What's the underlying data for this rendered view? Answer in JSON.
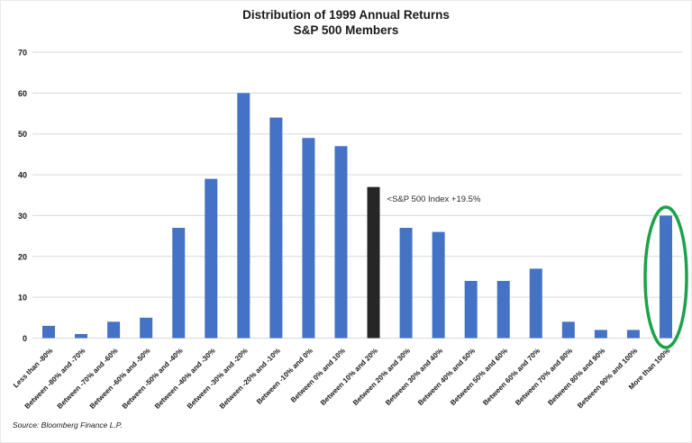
{
  "source": "Source: Bloomberg Finance L.P.",
  "chart_data": {
    "type": "bar",
    "title": "Distribution of 1999 Annual Returns",
    "subtitle": "S&P 500 Members",
    "categories": [
      "Less than -80%",
      "Between -80% and -70%",
      "Between -70% and -60%",
      "Between -60% and -50%",
      "Between -50% and -40%",
      "Between -40% and -30%",
      "Between -30% and -20%",
      "Between -20% and -10%",
      "Between -10% and 0%",
      "Between 0% and 10%",
      "Between 10% and 20%",
      "Between 20% and 30%",
      "Between 30% and 40%",
      "Between 40% and 50%",
      "Between 50% and 60%",
      "Between 60% and 70%",
      "Between 70% and 80%",
      "Between 80% and 90%",
      "Between 90% and 100%",
      "More than 100%"
    ],
    "values": [
      3,
      1,
      4,
      5,
      27,
      39,
      60,
      54,
      49,
      47,
      37,
      27,
      26,
      14,
      14,
      17,
      4,
      2,
      2,
      30
    ],
    "xlabel": "",
    "ylabel": "",
    "ylim": [
      0,
      70
    ],
    "ytick_interval": 10,
    "yticks": [
      0,
      10,
      20,
      30,
      40,
      50,
      60,
      70
    ],
    "grid": "horizontal",
    "legend": "none",
    "bar_color": "#4472C4",
    "gridline_color": "#D9D9D9",
    "highlight": {
      "index": 10,
      "category": "Between 10% and 20%",
      "color": "#262626"
    },
    "annotation": {
      "text": "<S&P 500 Index +19.5%",
      "attached_to_index": 10
    },
    "circle": {
      "index": 19,
      "category": "More than 100%",
      "color": "#1CA24A"
    }
  }
}
